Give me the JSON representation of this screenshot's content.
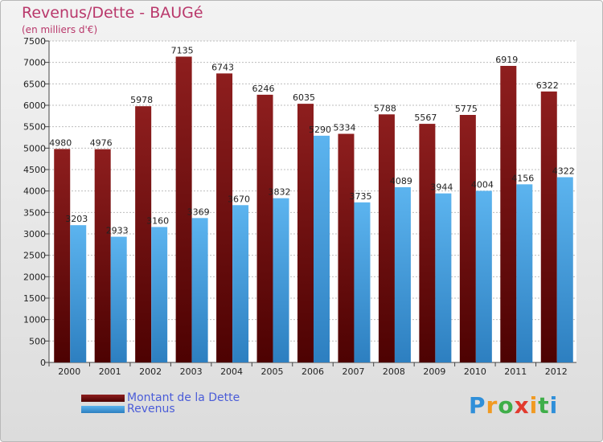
{
  "title": "Revenus/Dette - BAUGé",
  "subtitle": "(en milliers d'€)",
  "logo": "Proxiti",
  "colors": {
    "series1": "#7a1010",
    "series2": "#4aa3e0",
    "title": "#b9386b",
    "legend": "#4a5cd8"
  },
  "chart_data": {
    "type": "bar",
    "title": "Revenus/Dette - BAUGé",
    "ylabel": "(en milliers d'€)",
    "categories": [
      "2000",
      "2001",
      "2002",
      "2003",
      "2004",
      "2005",
      "2006",
      "2007",
      "2008",
      "2009",
      "2010",
      "2011",
      "2012"
    ],
    "series": [
      {
        "name": "Montant de la Dette",
        "values": [
          4980,
          4976,
          5978,
          7135,
          6743,
          6246,
          6035,
          5334,
          5788,
          5567,
          5775,
          6919,
          6322
        ]
      },
      {
        "name": "Revenus",
        "values": [
          3203,
          2933,
          3160,
          3369,
          3670,
          3832,
          5290,
          3735,
          4089,
          3944,
          4004,
          4156,
          4322
        ]
      }
    ],
    "ylim": [
      0,
      7500
    ],
    "yticks": [
      0,
      500,
      1000,
      1500,
      2000,
      2500,
      3000,
      3500,
      4000,
      4500,
      5000,
      5500,
      6000,
      6500,
      7000,
      7500
    ],
    "grid": true,
    "legend": "bottom-left"
  }
}
